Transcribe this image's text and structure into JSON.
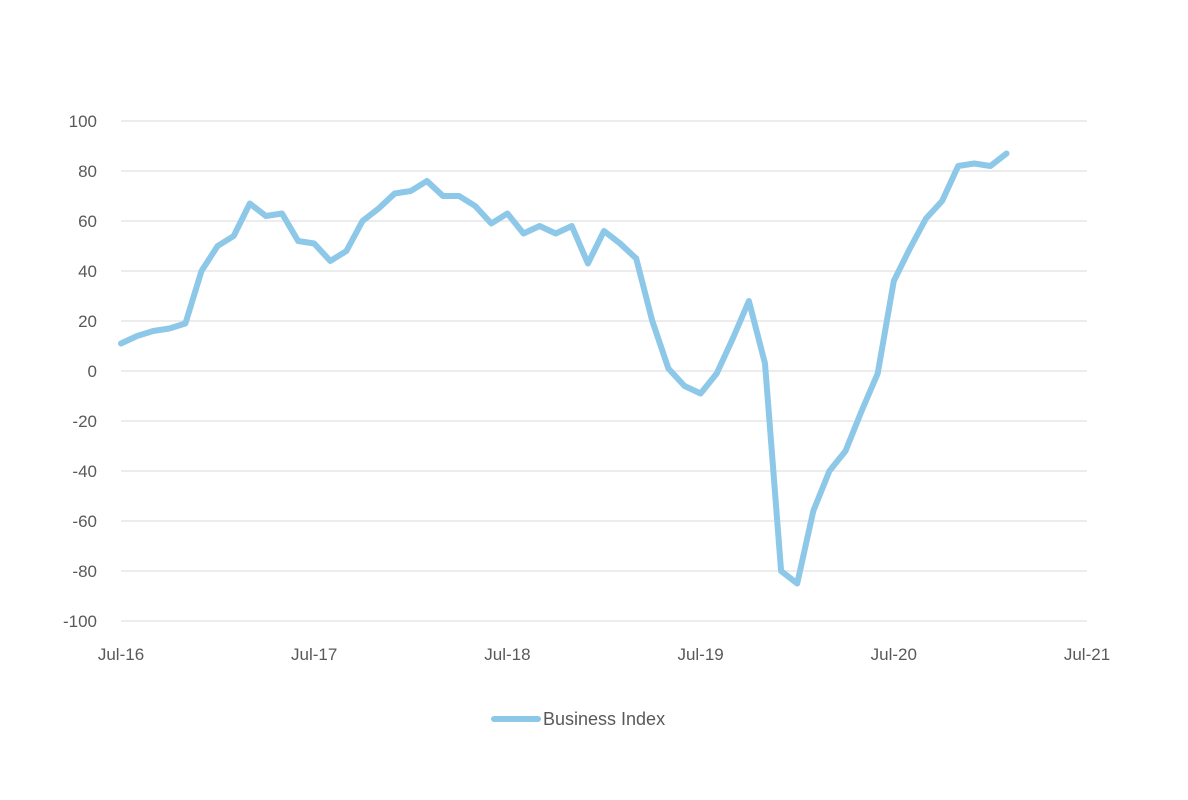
{
  "chart_data": {
    "type": "line",
    "title": "",
    "xlabel": "",
    "ylabel": "",
    "ylim": [
      -100,
      100
    ],
    "y_ticks": [
      100,
      80,
      60,
      40,
      20,
      0,
      -20,
      -40,
      -60,
      -80,
      -100
    ],
    "x_range": [
      "2016-07",
      "2021-07"
    ],
    "x_ticks": [
      {
        "label": "Jul-16",
        "date": "2016-07"
      },
      {
        "label": "Jul-17",
        "date": "2017-07"
      },
      {
        "label": "Jul-18",
        "date": "2018-07"
      },
      {
        "label": "Jul-19",
        "date": "2019-07"
      },
      {
        "label": "Jul-20",
        "date": "2020-07"
      },
      {
        "label": "Jul-21",
        "date": "2021-07"
      }
    ],
    "grid": true,
    "legend_position": "bottom",
    "series": [
      {
        "name": "Business Index",
        "color": "#8ec8e8",
        "points": [
          {
            "x": "2016-07",
            "y": 11
          },
          {
            "x": "2016-08",
            "y": 14
          },
          {
            "x": "2016-09",
            "y": 16
          },
          {
            "x": "2016-10",
            "y": 17
          },
          {
            "x": "2016-11",
            "y": 19
          },
          {
            "x": "2016-12",
            "y": 40
          },
          {
            "x": "2017-01",
            "y": 50
          },
          {
            "x": "2017-02",
            "y": 54
          },
          {
            "x": "2017-03",
            "y": 67
          },
          {
            "x": "2017-04",
            "y": 62
          },
          {
            "x": "2017-05",
            "y": 63
          },
          {
            "x": "2017-06",
            "y": 52
          },
          {
            "x": "2017-07",
            "y": 51
          },
          {
            "x": "2017-08",
            "y": 44
          },
          {
            "x": "2017-09",
            "y": 48
          },
          {
            "x": "2017-10",
            "y": 60
          },
          {
            "x": "2017-11",
            "y": 65
          },
          {
            "x": "2017-12",
            "y": 71
          },
          {
            "x": "2018-01",
            "y": 72
          },
          {
            "x": "2018-02",
            "y": 76
          },
          {
            "x": "2018-03",
            "y": 70
          },
          {
            "x": "2018-04",
            "y": 70
          },
          {
            "x": "2018-05",
            "y": 66
          },
          {
            "x": "2018-06",
            "y": 59
          },
          {
            "x": "2018-07",
            "y": 63
          },
          {
            "x": "2018-08",
            "y": 55
          },
          {
            "x": "2018-09",
            "y": 58
          },
          {
            "x": "2018-10",
            "y": 55
          },
          {
            "x": "2018-11",
            "y": 58
          },
          {
            "x": "2018-12",
            "y": 43
          },
          {
            "x": "2019-01",
            "y": 56
          },
          {
            "x": "2019-02",
            "y": 51
          },
          {
            "x": "2019-03",
            "y": 45
          },
          {
            "x": "2019-04",
            "y": 20
          },
          {
            "x": "2019-05",
            "y": 1
          },
          {
            "x": "2019-06",
            "y": -6
          },
          {
            "x": "2019-07",
            "y": -9
          },
          {
            "x": "2019-08",
            "y": -1
          },
          {
            "x": "2019-09",
            "y": 13
          },
          {
            "x": "2019-10",
            "y": 28
          },
          {
            "x": "2019-11",
            "y": 3
          },
          {
            "x": "2019-12",
            "y": -80
          },
          {
            "x": "2020-01",
            "y": -85
          },
          {
            "x": "2020-02",
            "y": -56
          },
          {
            "x": "2020-03",
            "y": -40
          },
          {
            "x": "2020-04",
            "y": -32
          },
          {
            "x": "2020-05",
            "y": -16
          },
          {
            "x": "2020-06",
            "y": -1
          },
          {
            "x": "2020-07",
            "y": 36
          },
          {
            "x": "2020-08",
            "y": 49
          },
          {
            "x": "2020-09",
            "y": 61
          },
          {
            "x": "2020-10",
            "y": 68
          },
          {
            "x": "2020-11",
            "y": 82
          },
          {
            "x": "2020-12",
            "y": 83
          },
          {
            "x": "2021-01",
            "y": 82
          },
          {
            "x": "2021-02",
            "y": 87
          }
        ]
      }
    ]
  }
}
